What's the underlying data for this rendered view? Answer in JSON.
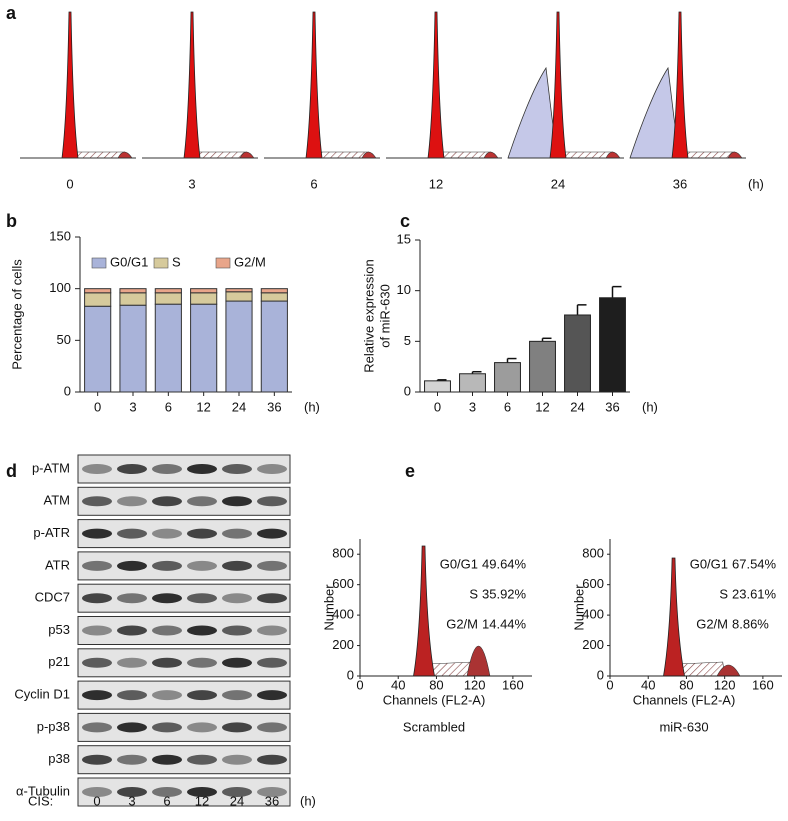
{
  "panel_labels": [
    "a",
    "b",
    "c",
    "d",
    "e"
  ],
  "panel_a": {
    "time_labels": [
      "0",
      "3",
      "6",
      "12",
      "24",
      "36"
    ],
    "unit": "(h)"
  },
  "chart_data": [
    {
      "type": "bar",
      "stacked": true,
      "ylabel": "Percentage of cells",
      "x_unit": "(h)",
      "categories": [
        "0",
        "3",
        "6",
        "12",
        "24",
        "36"
      ],
      "series": [
        {
          "name": "G0/G1",
          "color": "#a9b3d9",
          "values": [
            83,
            84,
            85,
            85,
            88,
            88
          ]
        },
        {
          "name": "S",
          "color": "#d6ca9c",
          "values": [
            13,
            12,
            11,
            11,
            9,
            8
          ]
        },
        {
          "name": "G2/M",
          "color": "#e8a58a",
          "values": [
            4,
            4,
            4,
            4,
            3,
            4
          ]
        }
      ],
      "ylim": [
        0,
        150
      ],
      "yticks": [
        0,
        50,
        100,
        150
      ]
    },
    {
      "type": "bar",
      "ylabel": [
        "Relative expression",
        "of miR-630"
      ],
      "x_unit": "(h)",
      "categories": [
        "0",
        "3",
        "6",
        "12",
        "24",
        "36"
      ],
      "values": [
        1.1,
        1.8,
        2.9,
        5.0,
        7.6,
        9.3
      ],
      "errors": [
        0.1,
        0.2,
        0.4,
        0.3,
        1.0,
        1.1
      ],
      "colors": [
        "#d4d4d4",
        "#b8b8b8",
        "#9c9c9c",
        "#808080",
        "#555555",
        "#1e1e1e"
      ],
      "ylim": [
        0,
        15
      ],
      "yticks": [
        0,
        5,
        10,
        15
      ]
    }
  ],
  "panel_d": {
    "proteins": [
      "p-ATM",
      "ATM",
      "p-ATR",
      "ATR",
      "CDC7",
      "p53",
      "p21",
      "Cyclin D1",
      "p-p38",
      "p38",
      "α-Tubulin"
    ],
    "treatment_label": "CIS:",
    "lanes": [
      "0",
      "3",
      "6",
      "12",
      "24",
      "36"
    ],
    "unit": "(h)"
  },
  "panel_e": {
    "ylabel": "Number",
    "xlabel": "Channels (FL2-A)",
    "yticks": [
      0,
      200,
      400,
      600,
      800
    ],
    "xticks": [
      0,
      40,
      80,
      120,
      160
    ],
    "ylim": [
      0,
      900
    ],
    "xlim": [
      0,
      180
    ],
    "plots": [
      {
        "name": "Scrambled",
        "stats": [
          {
            "phase": "G0/G1",
            "value": "49.64%"
          },
          {
            "phase": "S",
            "value": "35.92%"
          },
          {
            "phase": "G2/M",
            "value": "14.44%"
          }
        ]
      },
      {
        "name": "miR-630",
        "stats": [
          {
            "phase": "G0/G1",
            "value": "67.54%"
          },
          {
            "phase": "S",
            "value": "23.61%"
          },
          {
            "phase": "G2/M",
            "value": "8.86%"
          }
        ]
      }
    ]
  }
}
